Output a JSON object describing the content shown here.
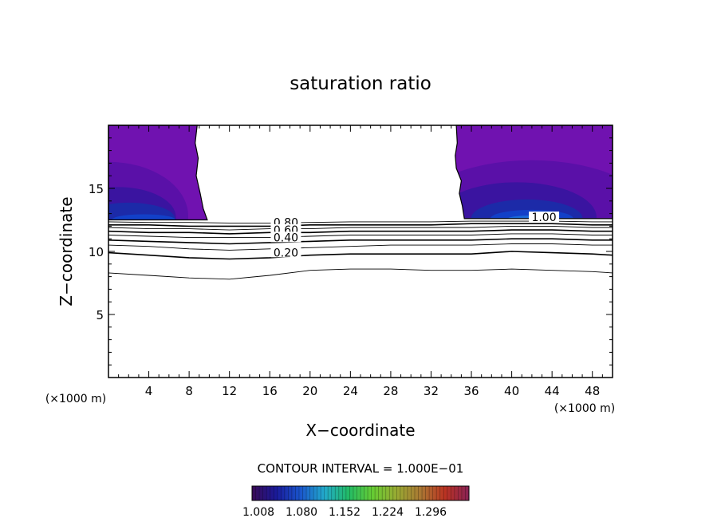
{
  "chart_data": {
    "type": "contour",
    "title": "saturation ratio",
    "xlabel": "X−coordinate",
    "ylabel": "Z−coordinate",
    "x_unit_left": "(×1000 m)",
    "x_unit_right": "(×1000 m)",
    "xlim": [
      0,
      50
    ],
    "ylim": [
      0,
      20
    ],
    "x_ticks": [
      4,
      8,
      12,
      16,
      20,
      24,
      28,
      32,
      36,
      40,
      44,
      48
    ],
    "y_ticks": [
      5,
      10,
      15
    ],
    "contour_interval_text": "CONTOUR INTERVAL = 1.000E−01",
    "contour_labels": [
      {
        "text": "0.80",
        "x": 17.6,
        "z": 12.0
      },
      {
        "text": "0.60",
        "x": 17.6,
        "z": 11.4
      },
      {
        "text": "0.40",
        "x": 17.6,
        "z": 10.8
      },
      {
        "text": "0.20",
        "x": 17.6,
        "z": 9.6
      },
      {
        "text": "1.00",
        "x": 43.2,
        "z": 12.4
      }
    ],
    "contours": [
      {
        "level": 0.1,
        "points": [
          [
            0,
            8.3
          ],
          [
            4,
            8.1
          ],
          [
            8,
            7.9
          ],
          [
            12,
            7.8
          ],
          [
            16,
            8.1
          ],
          [
            20,
            8.5
          ],
          [
            24,
            8.6
          ],
          [
            28,
            8.6
          ],
          [
            32,
            8.5
          ],
          [
            36,
            8.5
          ],
          [
            40,
            8.6
          ],
          [
            44,
            8.5
          ],
          [
            48,
            8.4
          ],
          [
            50,
            8.3
          ]
        ]
      },
      {
        "level": 0.2,
        "points": [
          [
            0,
            9.9
          ],
          [
            4,
            9.7
          ],
          [
            8,
            9.5
          ],
          [
            12,
            9.4
          ],
          [
            16,
            9.5
          ],
          [
            20,
            9.7
          ],
          [
            24,
            9.8
          ],
          [
            28,
            9.8
          ],
          [
            32,
            9.8
          ],
          [
            36,
            9.8
          ],
          [
            40,
            10.0
          ],
          [
            44,
            9.9
          ],
          [
            48,
            9.8
          ],
          [
            50,
            9.7
          ]
        ]
      },
      {
        "level": 0.3,
        "points": [
          [
            0,
            10.5
          ],
          [
            4,
            10.4
          ],
          [
            8,
            10.2
          ],
          [
            12,
            10.1
          ],
          [
            16,
            10.2
          ],
          [
            20,
            10.3
          ],
          [
            24,
            10.4
          ],
          [
            28,
            10.5
          ],
          [
            32,
            10.5
          ],
          [
            36,
            10.5
          ],
          [
            40,
            10.6
          ],
          [
            44,
            10.6
          ],
          [
            48,
            10.5
          ],
          [
            50,
            10.5
          ]
        ]
      },
      {
        "level": 0.4,
        "points": [
          [
            0,
            10.9
          ],
          [
            4,
            10.8
          ],
          [
            8,
            10.7
          ],
          [
            12,
            10.6
          ],
          [
            16,
            10.7
          ],
          [
            20,
            10.8
          ],
          [
            24,
            10.9
          ],
          [
            28,
            10.9
          ],
          [
            32,
            10.9
          ],
          [
            36,
            10.9
          ],
          [
            40,
            11.0
          ],
          [
            44,
            11.0
          ],
          [
            48,
            10.9
          ],
          [
            50,
            10.9
          ]
        ]
      },
      {
        "level": 0.5,
        "points": [
          [
            0,
            11.3
          ],
          [
            4,
            11.2
          ],
          [
            8,
            11.1
          ],
          [
            12,
            11.1
          ],
          [
            16,
            11.1
          ],
          [
            20,
            11.2
          ],
          [
            24,
            11.3
          ],
          [
            28,
            11.3
          ],
          [
            32,
            11.3
          ],
          [
            36,
            11.3
          ],
          [
            40,
            11.4
          ],
          [
            44,
            11.4
          ],
          [
            48,
            11.3
          ],
          [
            50,
            11.3
          ]
        ]
      },
      {
        "level": 0.6,
        "points": [
          [
            0,
            11.6
          ],
          [
            4,
            11.5
          ],
          [
            8,
            11.5
          ],
          [
            12,
            11.4
          ],
          [
            16,
            11.5
          ],
          [
            20,
            11.5
          ],
          [
            24,
            11.6
          ],
          [
            28,
            11.6
          ],
          [
            32,
            11.6
          ],
          [
            36,
            11.6
          ],
          [
            40,
            11.7
          ],
          [
            44,
            11.7
          ],
          [
            48,
            11.6
          ],
          [
            50,
            11.6
          ]
        ]
      },
      {
        "level": 0.7,
        "points": [
          [
            0,
            11.9
          ],
          [
            4,
            11.8
          ],
          [
            8,
            11.8
          ],
          [
            12,
            11.7
          ],
          [
            16,
            11.8
          ],
          [
            20,
            11.8
          ],
          [
            24,
            11.9
          ],
          [
            28,
            11.9
          ],
          [
            32,
            11.9
          ],
          [
            36,
            11.9
          ],
          [
            40,
            12.0
          ],
          [
            44,
            12.0
          ],
          [
            48,
            11.9
          ],
          [
            50,
            11.9
          ]
        ]
      },
      {
        "level": 0.8,
        "points": [
          [
            0,
            12.1
          ],
          [
            4,
            12.1
          ],
          [
            8,
            12.0
          ],
          [
            12,
            12.0
          ],
          [
            16,
            12.0
          ],
          [
            20,
            12.1
          ],
          [
            24,
            12.1
          ],
          [
            28,
            12.1
          ],
          [
            32,
            12.1
          ],
          [
            36,
            12.2
          ],
          [
            40,
            12.2
          ],
          [
            44,
            12.2
          ],
          [
            48,
            12.1
          ],
          [
            50,
            12.1
          ]
        ]
      },
      {
        "level": 0.9,
        "points": [
          [
            0,
            12.35
          ],
          [
            4,
            12.3
          ],
          [
            8,
            12.3
          ],
          [
            12,
            12.25
          ],
          [
            16,
            12.25
          ],
          [
            20,
            12.3
          ],
          [
            24,
            12.35
          ],
          [
            28,
            12.35
          ],
          [
            32,
            12.35
          ],
          [
            36,
            12.4
          ],
          [
            40,
            12.4
          ],
          [
            44,
            12.4
          ],
          [
            48,
            12.35
          ],
          [
            50,
            12.35
          ]
        ]
      }
    ],
    "saturated_regions": [
      {
        "name": "left",
        "outline": [
          [
            0,
            20
          ],
          [
            8.8,
            20
          ],
          [
            8.6,
            18.6
          ],
          [
            8.9,
            17.4
          ],
          [
            8.7,
            16.0
          ],
          [
            9.1,
            14.6
          ],
          [
            9.4,
            13.4
          ],
          [
            9.8,
            12.5
          ],
          [
            0,
            12.5
          ]
        ]
      },
      {
        "name": "right",
        "outline": [
          [
            34.5,
            20
          ],
          [
            50,
            20
          ],
          [
            50,
            12.6
          ],
          [
            35.3,
            12.6
          ],
          [
            35.1,
            13.6
          ],
          [
            34.8,
            14.6
          ],
          [
            35.0,
            15.6
          ],
          [
            34.5,
            16.6
          ],
          [
            34.4,
            17.6
          ],
          [
            34.6,
            18.6
          ]
        ]
      }
    ],
    "colorbar": {
      "tick_labels": [
        "1.008",
        "1.080",
        "1.152",
        "1.224",
        "1.296"
      ],
      "colors": [
        "#3a0a55",
        "#1a1a9a",
        "#1a55cc",
        "#22aacc",
        "#22bb66",
        "#66cc33",
        "#99aa33",
        "#aa7733",
        "#bb3322",
        "#882255"
      ]
    },
    "fill_colors": {
      "purple": "#7012b0",
      "violet": "#5a10a8",
      "indigo": "#3a14a0",
      "deep_blue": "#1c2aa8",
      "blue": "#1240c8",
      "bright_blue": "#1a6ad8"
    }
  }
}
